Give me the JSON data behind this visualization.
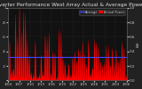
{
  "title": "Solar PV/Inverter Performance West Array Actual & Average Power Output",
  "bg_color": "#222222",
  "plot_bg_color": "#111111",
  "grid_color": "#555555",
  "area_color": "#ff0000",
  "avg_line_color": "#4444ff",
  "avg_value": 0.32,
  "ylim": [
    0,
    1.0
  ],
  "ylabel_right": "kW",
  "legend_actual": "Actual Power",
  "legend_average": "Average",
  "title_color": "#dddddd",
  "title_fontsize": 4.2,
  "tick_fontsize": 3.0,
  "tick_color": "#cccccc",
  "x_labels": [
    "1/04",
    "1/07",
    "1/10",
    "1/13",
    "1/16",
    "1/19",
    "1/22",
    "1/25",
    "1/28",
    "1/31",
    "2/03",
    "2/06"
  ],
  "y_tick_labels_left": [
    "",
    ".2",
    ".4",
    ".6",
    ".8",
    "1"
  ],
  "y_tick_vals": [
    0.0,
    0.2,
    0.4,
    0.6,
    0.8,
    1.0
  ],
  "y_ticks_right": [
    0.0,
    0.2,
    0.4,
    0.6,
    0.8,
    1.0
  ],
  "days": 60,
  "samples_per_day": 10,
  "seed": 7
}
